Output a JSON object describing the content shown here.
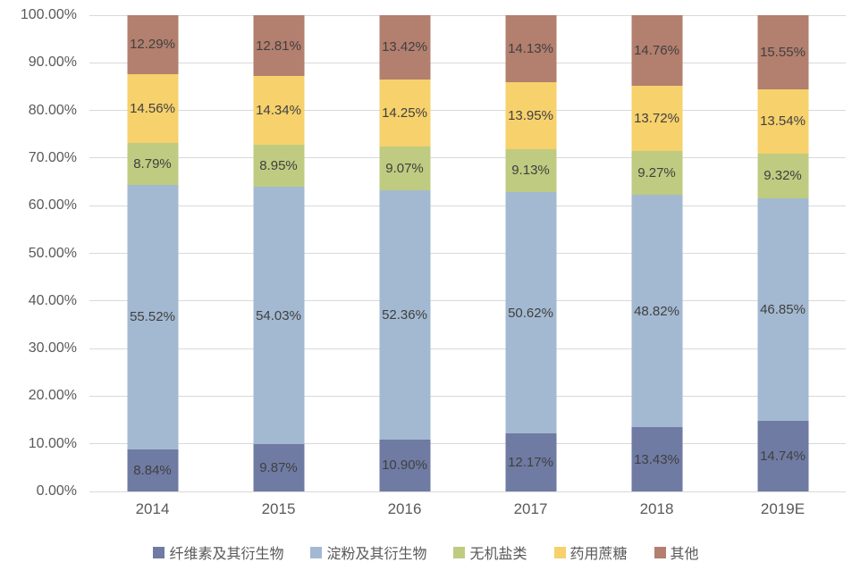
{
  "chart_data": {
    "type": "bar",
    "stacked": true,
    "percent_stacked": true,
    "title": "",
    "xlabel": "",
    "ylabel": "",
    "categories": [
      "2014",
      "2015",
      "2016",
      "2017",
      "2018",
      "2019E"
    ],
    "series": [
      {
        "name": "纤维素及其衍生物",
        "color": "#6f7ba3",
        "values": [
          8.84,
          9.87,
          10.9,
          12.17,
          13.43,
          14.74
        ]
      },
      {
        "name": "淀粉及其衍生物",
        "color": "#a3b9d1",
        "values": [
          55.52,
          54.03,
          52.36,
          50.62,
          48.82,
          46.85
        ]
      },
      {
        "name": "无机盐类",
        "color": "#bfcb80",
        "values": [
          8.79,
          8.95,
          9.07,
          9.13,
          9.27,
          9.32
        ]
      },
      {
        "name": "药用蔗糖",
        "color": "#f6d16c",
        "values": [
          14.56,
          14.34,
          14.25,
          13.95,
          13.72,
          13.54
        ]
      },
      {
        "name": "其他",
        "color": "#b37f6e",
        "values": [
          12.29,
          12.81,
          13.42,
          14.13,
          14.76,
          15.55
        ]
      }
    ],
    "y_ticks": [
      "0.00%",
      "10.00%",
      "20.00%",
      "30.00%",
      "40.00%",
      "50.00%",
      "60.00%",
      "70.00%",
      "80.00%",
      "90.00%",
      "100.00%"
    ],
    "ylim": [
      0,
      100
    ],
    "grid": true,
    "gridline_color": "#d9d9d9",
    "axis_text_color": "#595959",
    "data_label_color": "#404040",
    "data_labels": true,
    "legend_position": "bottom"
  }
}
